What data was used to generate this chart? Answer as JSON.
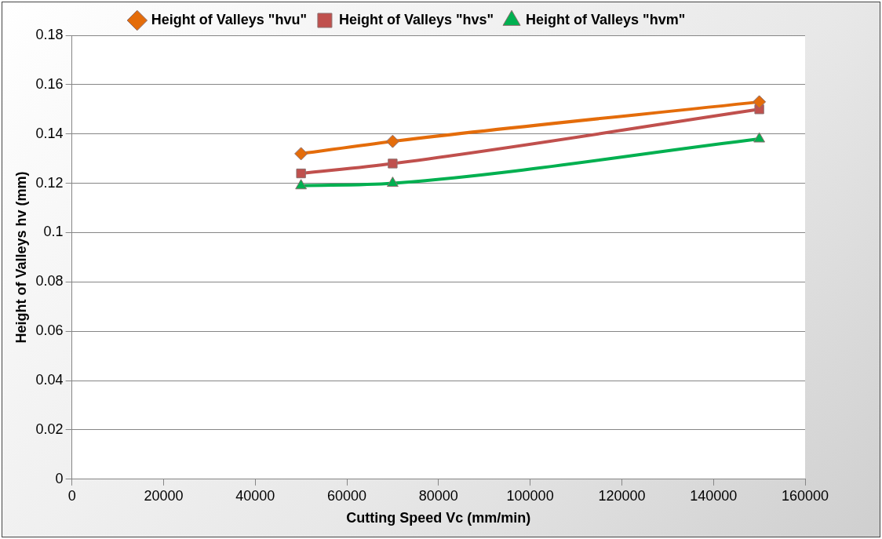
{
  "chart_data": {
    "type": "line",
    "xlabel": "Cutting Speed Vc (mm/min)",
    "ylabel": "Height of Valleys hv (mm)",
    "xlim": [
      0,
      160000
    ],
    "xticks": [
      0,
      20000,
      40000,
      60000,
      80000,
      100000,
      120000,
      140000,
      160000
    ],
    "ylim": [
      0,
      0.18
    ],
    "yticks": [
      0,
      0.02,
      0.04,
      0.06,
      0.08,
      0.1,
      0.12,
      0.14,
      0.16,
      0.18
    ],
    "grid": "y",
    "legend": "top",
    "series": [
      {
        "name": "Height of Valleys \"hvu\"",
        "color": "#e46c0a",
        "marker": "diamond",
        "x": [
          50000,
          70000,
          150000
        ],
        "values": [
          0.132,
          0.137,
          0.153
        ]
      },
      {
        "name": "Height of Valleys \"hvs\"",
        "color": "#c0504d",
        "marker": "square",
        "x": [
          50000,
          70000,
          150000
        ],
        "values": [
          0.124,
          0.128,
          0.15
        ]
      },
      {
        "name": "Height of Valleys \"hvm\"",
        "color": "#00b050",
        "marker": "triangle",
        "x": [
          50000,
          70000,
          150000
        ],
        "values": [
          0.119,
          0.12,
          0.138
        ]
      }
    ]
  }
}
